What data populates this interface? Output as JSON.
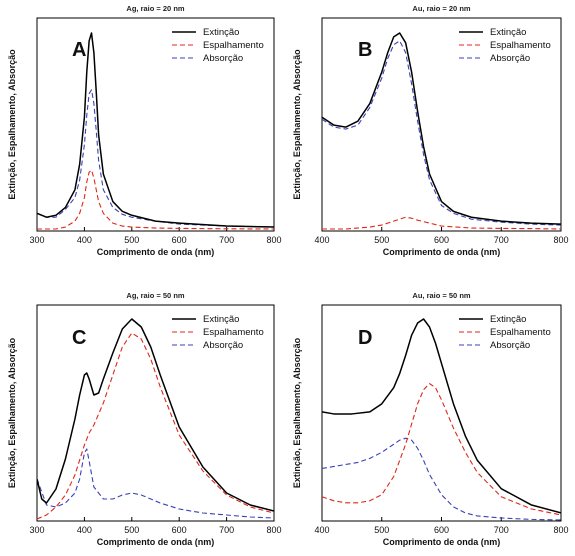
{
  "chart_data": [
    {
      "type": "line",
      "letter": "A",
      "title": "Ag, raio = 20 nm",
      "xlabel": "Comprimento de onda (nm)",
      "ylabel": "Extinção, Espalhamento, Absorção",
      "xlim": [
        300,
        800
      ],
      "xticks": [
        "300",
        "400",
        "500",
        "600",
        "700",
        "800"
      ],
      "legend_position": "top-right",
      "series": [
        {
          "name": "Extinção",
          "color": "#000000",
          "dash": "solid",
          "x": [
            300,
            320,
            340,
            360,
            380,
            390,
            400,
            405,
            410,
            415,
            420,
            425,
            430,
            440,
            460,
            480,
            500,
            550,
            600,
            700,
            800
          ],
          "y": [
            0.08,
            0.06,
            0.07,
            0.11,
            0.2,
            0.33,
            0.57,
            0.8,
            0.96,
            1.0,
            0.9,
            0.7,
            0.48,
            0.28,
            0.14,
            0.09,
            0.07,
            0.04,
            0.03,
            0.015,
            0.01
          ]
        },
        {
          "name": "Espalhamento",
          "color": "#e0271a",
          "dash": "dashed",
          "x": [
            300,
            340,
            360,
            380,
            390,
            400,
            405,
            410,
            415,
            420,
            425,
            430,
            440,
            460,
            480,
            500,
            550,
            600,
            700,
            800
          ],
          "y": [
            0.0,
            0.0,
            0.01,
            0.04,
            0.08,
            0.16,
            0.24,
            0.29,
            0.3,
            0.26,
            0.2,
            0.14,
            0.08,
            0.03,
            0.015,
            0.01,
            0.005,
            0.003,
            0.001,
            0.0
          ]
        },
        {
          "name": "Absorção",
          "color": "#3a41b8",
          "dash": "dashed",
          "x": [
            300,
            320,
            340,
            360,
            380,
            390,
            400,
            405,
            410,
            415,
            420,
            425,
            430,
            440,
            460,
            480,
            500,
            550,
            600,
            700,
            800
          ],
          "y": [
            0.08,
            0.06,
            0.06,
            0.1,
            0.16,
            0.25,
            0.43,
            0.58,
            0.69,
            0.71,
            0.64,
            0.5,
            0.35,
            0.2,
            0.11,
            0.075,
            0.06,
            0.04,
            0.025,
            0.015,
            0.01
          ]
        }
      ]
    },
    {
      "type": "line",
      "letter": "B",
      "title": "Au, raio = 20 nm",
      "xlabel": "Comprimento de onda (nm)",
      "ylabel": "Extinção, Espalhamento, Absorção",
      "xlim": [
        400,
        800
      ],
      "xticks": [
        "400",
        "500",
        "600",
        "700",
        "800"
      ],
      "legend_position": "top-right",
      "series": [
        {
          "name": "Extinção",
          "color": "#000000",
          "dash": "solid",
          "x": [
            400,
            420,
            440,
            460,
            480,
            500,
            510,
            520,
            530,
            540,
            550,
            560,
            570,
            580,
            600,
            620,
            650,
            700,
            750,
            800
          ],
          "y": [
            0.57,
            0.53,
            0.52,
            0.55,
            0.64,
            0.8,
            0.9,
            0.98,
            1.0,
            0.95,
            0.8,
            0.6,
            0.42,
            0.28,
            0.14,
            0.09,
            0.06,
            0.04,
            0.03,
            0.025
          ]
        },
        {
          "name": "Espalhamento",
          "color": "#e0271a",
          "dash": "dashed",
          "x": [
            400,
            440,
            480,
            500,
            520,
            530,
            540,
            550,
            560,
            580,
            600,
            650,
            700,
            750,
            800
          ],
          "y": [
            0.0,
            0.0,
            0.01,
            0.02,
            0.04,
            0.05,
            0.06,
            0.055,
            0.045,
            0.03,
            0.015,
            0.005,
            0.003,
            0.002,
            0.0
          ]
        },
        {
          "name": "Absorção",
          "color": "#3a41b8",
          "dash": "dashed",
          "x": [
            400,
            420,
            440,
            460,
            480,
            500,
            510,
            520,
            530,
            540,
            550,
            560,
            570,
            580,
            600,
            620,
            650,
            700,
            750,
            800
          ],
          "y": [
            0.56,
            0.52,
            0.51,
            0.53,
            0.62,
            0.77,
            0.87,
            0.94,
            0.96,
            0.9,
            0.74,
            0.55,
            0.38,
            0.25,
            0.12,
            0.08,
            0.05,
            0.035,
            0.025,
            0.02
          ]
        }
      ]
    },
    {
      "type": "line",
      "letter": "C",
      "title": "Ag, raio = 50 nm",
      "xlabel": "Comprimento de onda (nm)",
      "ylabel": "Extinção, Espalhamento, Absorção",
      "xlim": [
        300,
        800
      ],
      "xticks": [
        "300",
        "400",
        "500",
        "600",
        "700",
        "800"
      ],
      "legend_position": "top-right",
      "series": [
        {
          "name": "Extinção",
          "color": "#000000",
          "dash": "solid",
          "x": [
            300,
            310,
            320,
            340,
            360,
            380,
            390,
            400,
            405,
            410,
            420,
            430,
            440,
            460,
            480,
            500,
            520,
            540,
            560,
            600,
            650,
            700,
            750,
            800
          ],
          "y": [
            0.2,
            0.1,
            0.08,
            0.15,
            0.3,
            0.5,
            0.62,
            0.72,
            0.73,
            0.7,
            0.62,
            0.63,
            0.7,
            0.83,
            0.95,
            1.0,
            0.96,
            0.86,
            0.72,
            0.46,
            0.26,
            0.13,
            0.07,
            0.04
          ]
        },
        {
          "name": "Espalhamento",
          "color": "#e0271a",
          "dash": "dashed",
          "x": [
            300,
            320,
            340,
            360,
            380,
            400,
            410,
            420,
            440,
            460,
            480,
            500,
            520,
            540,
            560,
            600,
            650,
            700,
            750,
            800
          ],
          "y": [
            0.0,
            0.02,
            0.06,
            0.12,
            0.22,
            0.37,
            0.43,
            0.47,
            0.58,
            0.72,
            0.86,
            0.93,
            0.9,
            0.8,
            0.66,
            0.42,
            0.24,
            0.12,
            0.06,
            0.03
          ]
        },
        {
          "name": "Absorção",
          "color": "#3a41b8",
          "dash": "dashed",
          "x": [
            300,
            320,
            340,
            360,
            380,
            390,
            400,
            405,
            410,
            420,
            440,
            460,
            480,
            500,
            520,
            540,
            560,
            600,
            650,
            700,
            750,
            800
          ],
          "y": [
            0.2,
            0.07,
            0.06,
            0.08,
            0.13,
            0.2,
            0.33,
            0.35,
            0.29,
            0.16,
            0.1,
            0.1,
            0.12,
            0.13,
            0.12,
            0.1,
            0.08,
            0.05,
            0.03,
            0.02,
            0.01,
            0.005
          ]
        }
      ]
    },
    {
      "type": "line",
      "letter": "D",
      "title": "Au, raio = 50 nm",
      "xlabel": "Comprimento de onda (nm)",
      "ylabel": "Extinção, Espalhamento, Absorção",
      "xlim": [
        400,
        800
      ],
      "xticks": [
        "400",
        "500",
        "600",
        "700",
        "800"
      ],
      "legend_position": "top-right",
      "series": [
        {
          "name": "Extinção",
          "color": "#000000",
          "dash": "solid",
          "x": [
            400,
            420,
            450,
            480,
            500,
            520,
            530,
            540,
            550,
            560,
            570,
            580,
            590,
            600,
            620,
            640,
            660,
            700,
            750,
            800
          ],
          "y": [
            0.54,
            0.53,
            0.53,
            0.54,
            0.58,
            0.66,
            0.73,
            0.82,
            0.92,
            0.98,
            1.0,
            0.96,
            0.88,
            0.78,
            0.58,
            0.42,
            0.3,
            0.16,
            0.08,
            0.04
          ]
        },
        {
          "name": "Espalhamento",
          "color": "#e0271a",
          "dash": "dashed",
          "x": [
            400,
            420,
            440,
            460,
            480,
            500,
            520,
            540,
            560,
            570,
            580,
            590,
            600,
            620,
            640,
            660,
            700,
            750,
            800
          ],
          "y": [
            0.12,
            0.1,
            0.09,
            0.09,
            0.1,
            0.13,
            0.22,
            0.38,
            0.58,
            0.65,
            0.68,
            0.66,
            0.6,
            0.46,
            0.34,
            0.24,
            0.12,
            0.06,
            0.03
          ]
        },
        {
          "name": "Absorção",
          "color": "#3a41b8",
          "dash": "dashed",
          "x": [
            400,
            420,
            440,
            460,
            480,
            500,
            520,
            530,
            540,
            550,
            560,
            570,
            580,
            600,
            620,
            640,
            660,
            700,
            750,
            800
          ],
          "y": [
            0.26,
            0.27,
            0.28,
            0.29,
            0.31,
            0.34,
            0.38,
            0.4,
            0.41,
            0.4,
            0.36,
            0.3,
            0.23,
            0.13,
            0.07,
            0.04,
            0.025,
            0.015,
            0.008,
            0.005
          ]
        }
      ]
    }
  ]
}
